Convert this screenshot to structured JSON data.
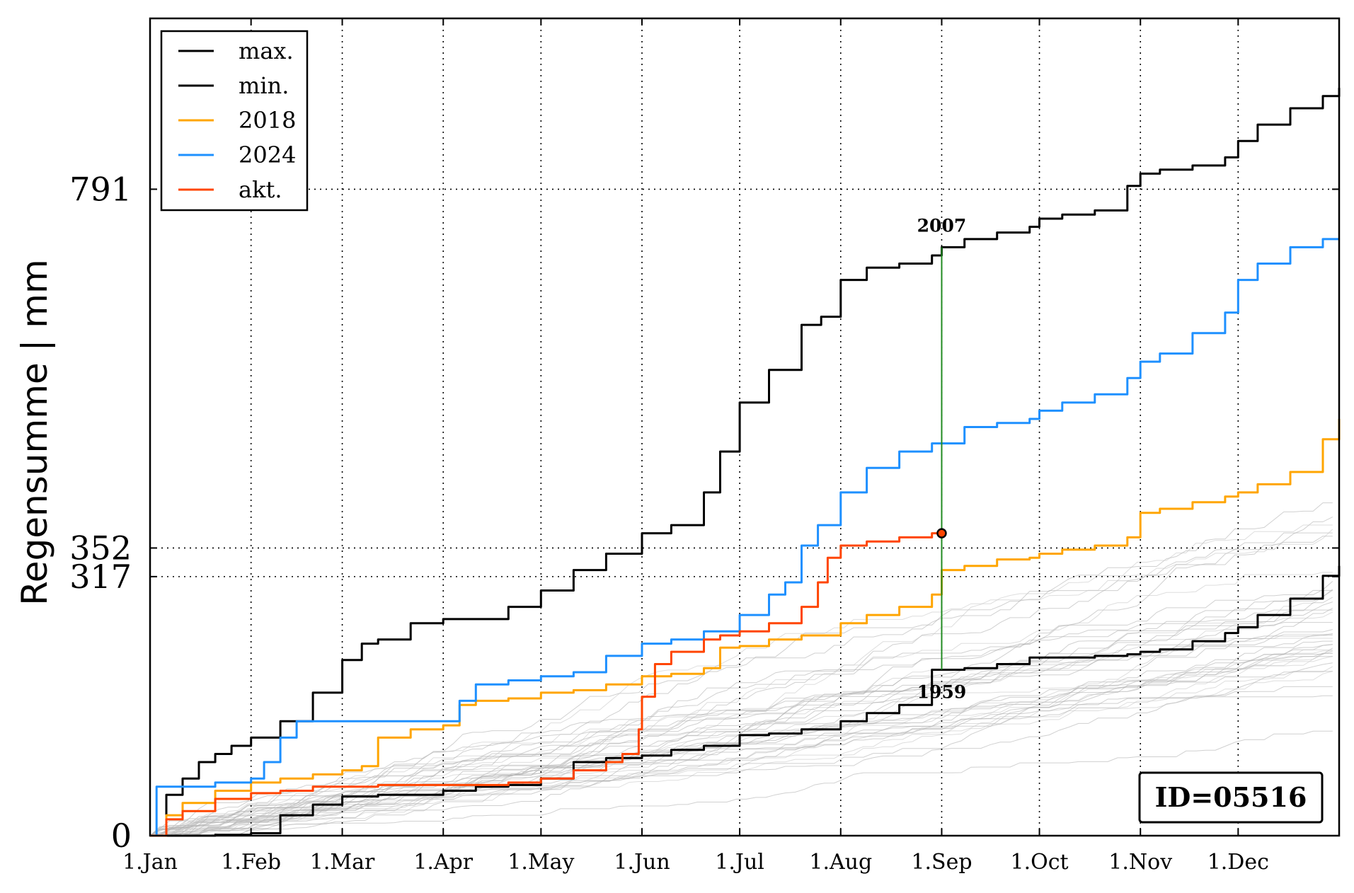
{
  "chart_data": {
    "type": "line",
    "ylabel": "Regensumme | mm",
    "xlim": [
      0,
      365
    ],
    "ylim": [
      0,
      1000
    ],
    "x_tick_labels": [
      "1.Jan",
      "1.Feb",
      "1.Mar",
      "1.Apr",
      "1.May",
      "1.Jun",
      "1.Jul",
      "1.Aug",
      "1.Sep",
      "1.Oct",
      "1.Nov",
      "1.Dec"
    ],
    "x_tick_days": [
      0,
      31,
      59,
      90,
      120,
      151,
      181,
      212,
      243,
      273,
      304,
      334
    ],
    "y_ticks": [
      0,
      317,
      352,
      791
    ],
    "y_tick_labels": [
      "0",
      "317",
      "352",
      "791"
    ],
    "grid": "dotted",
    "legend_position": "top-left",
    "series": [
      {
        "name": "max.",
        "color": "#000000",
        "x": [
          0,
          5,
          10,
          15,
          20,
          25,
          31,
          40,
          50,
          59,
          65,
          70,
          80,
          90,
          100,
          110,
          120,
          130,
          140,
          151,
          160,
          170,
          175,
          181,
          190,
          200,
          206,
          212,
          220,
          230,
          240,
          243,
          250,
          260,
          270,
          273,
          280,
          290,
          300,
          304,
          310,
          320,
          330,
          334,
          340,
          350,
          360,
          365
        ],
        "y": [
          0,
          50,
          70,
          90,
          100,
          110,
          120,
          140,
          175,
          215,
          235,
          240,
          260,
          265,
          265,
          280,
          300,
          325,
          345,
          370,
          380,
          420,
          470,
          530,
          570,
          625,
          635,
          680,
          695,
          700,
          710,
          720,
          730,
          738,
          745,
          755,
          760,
          765,
          795,
          810,
          815,
          820,
          830,
          850,
          870,
          890,
          905,
          915
        ]
      },
      {
        "name": "min.",
        "color": "#000000",
        "x": [
          0,
          20,
          31,
          40,
          50,
          59,
          70,
          90,
          100,
          110,
          120,
          130,
          140,
          151,
          160,
          170,
          181,
          190,
          200,
          212,
          220,
          230,
          240,
          243,
          250,
          260,
          270,
          273,
          280,
          290,
          300,
          304,
          310,
          320,
          330,
          334,
          340,
          350,
          360,
          365
        ],
        "y": [
          0,
          1,
          3,
          25,
          38,
          48,
          50,
          55,
          60,
          62,
          70,
          90,
          95,
          98,
          105,
          110,
          123,
          125,
          130,
          140,
          150,
          160,
          203,
          203,
          205,
          210,
          218,
          218,
          218,
          220,
          222,
          225,
          228,
          238,
          248,
          255,
          270,
          290,
          318,
          330
        ]
      },
      {
        "name": "2018",
        "color": "#FFA500",
        "x": [
          0,
          5,
          10,
          20,
          31,
          40,
          50,
          59,
          65,
          70,
          80,
          90,
          95,
          100,
          110,
          120,
          130,
          140,
          151,
          160,
          170,
          175,
          181,
          190,
          200,
          212,
          220,
          230,
          240,
          243,
          250,
          260,
          270,
          273,
          280,
          290,
          300,
          304,
          310,
          320,
          330,
          334,
          340,
          350,
          360,
          365
        ],
        "y": [
          0,
          25,
          40,
          55,
          65,
          70,
          75,
          80,
          85,
          120,
          130,
          135,
          160,
          165,
          168,
          175,
          178,
          185,
          195,
          198,
          205,
          230,
          232,
          240,
          245,
          260,
          270,
          280,
          295,
          325,
          330,
          338,
          340,
          345,
          350,
          355,
          365,
          395,
          400,
          408,
          415,
          420,
          430,
          445,
          485,
          510
        ]
      },
      {
        "name": "2024",
        "color": "#1E90FF",
        "x": [
          0,
          2,
          10,
          20,
          31,
          35,
          40,
          45,
          55,
          59,
          65,
          70,
          80,
          90,
          95,
          100,
          110,
          120,
          130,
          140,
          151,
          160,
          170,
          181,
          190,
          195,
          200,
          205,
          212,
          220,
          230,
          240,
          243,
          250,
          260,
          270,
          273,
          280,
          290,
          300,
          304,
          310,
          320,
          330,
          334,
          340,
          350,
          360,
          365
        ],
        "y": [
          0,
          60,
          60,
          65,
          70,
          90,
          120,
          140,
          140,
          140,
          140,
          140,
          140,
          140,
          165,
          185,
          190,
          195,
          200,
          220,
          235,
          240,
          250,
          270,
          295,
          310,
          355,
          380,
          420,
          450,
          470,
          480,
          480,
          500,
          505,
          510,
          520,
          530,
          540,
          560,
          580,
          590,
          615,
          640,
          680,
          700,
          720,
          730,
          730
        ]
      },
      {
        "name": "akt.",
        "color": "#FF4500",
        "x": [
          0,
          5,
          10,
          20,
          31,
          40,
          50,
          59,
          70,
          80,
          90,
          100,
          110,
          120,
          130,
          140,
          145,
          150,
          151,
          155,
          160,
          170,
          175,
          181,
          190,
          200,
          205,
          208,
          212,
          220,
          230,
          240,
          243
        ],
        "y": [
          0,
          20,
          30,
          45,
          52,
          55,
          60,
          60,
          62,
          62,
          62,
          62,
          65,
          70,
          80,
          90,
          100,
          130,
          170,
          210,
          225,
          240,
          245,
          250,
          260,
          280,
          310,
          340,
          355,
          360,
          365,
          370,
          370
        ]
      }
    ],
    "background_curves": 40,
    "marker": {
      "x": 243,
      "y": 370,
      "color": "#FF4500"
    },
    "vertical_line": {
      "x": 243,
      "from": 203,
      "to": 720,
      "color": "#228B22"
    },
    "annotations": [
      {
        "text": "2007",
        "x": 243,
        "y": 720,
        "position": "above"
      },
      {
        "text": "1959",
        "x": 243,
        "y": 203,
        "position": "below"
      }
    ]
  },
  "id_box": "ID=05516"
}
